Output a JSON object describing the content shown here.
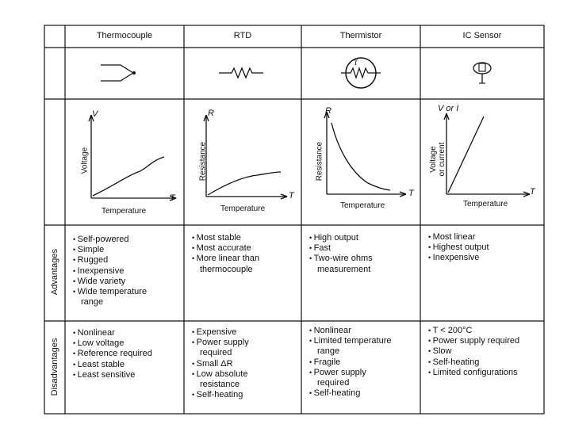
{
  "columns": [
    {
      "header": "Thermocouple",
      "symbol_icon": "thermocouple-junction-icon"
    },
    {
      "header": "RTD",
      "symbol_icon": "resistor-zigzag-icon"
    },
    {
      "header": "Thermistor",
      "symbol_icon": "thermistor-circle-icon"
    },
    {
      "header": "IC Sensor",
      "symbol_icon": "ic-sensor-icon"
    }
  ],
  "row_labels": {
    "advantages": "Advantages",
    "disadvantages": "Disadvantages"
  },
  "graphs": [
    {
      "y_symbol": "V",
      "y_label": "Voltage",
      "x_label": "Temperature",
      "x_symbol": "T",
      "curve": "rising with inflection"
    },
    {
      "y_symbol": "R",
      "y_label": "Resistance",
      "x_label": "Temperature",
      "x_symbol": "T",
      "curve": "rising, flattening"
    },
    {
      "y_symbol": "R",
      "y_label": "Resistance",
      "x_label": "Temperature",
      "x_symbol": "T",
      "curve": "decreasing exponential"
    },
    {
      "y_symbol": "V or I",
      "y_label_line1": "Voltage",
      "y_label_line2": "or current",
      "x_label": "Temperature",
      "x_symbol": "T",
      "curve": "linear"
    }
  ],
  "advantages": [
    [
      "Self-powered",
      "Simple",
      "Rugged",
      "Inexpensive",
      "Wide variety",
      "Wide temperature range"
    ],
    [
      "Most stable",
      "Most accurate",
      "More linear than thermocouple"
    ],
    [
      "High output",
      "Fast",
      "Two-wire ohms measurement"
    ],
    [
      "Most linear",
      "Highest output",
      "Inexpensive"
    ]
  ],
  "disadvantages": [
    [
      "Nonlinear",
      "Low voltage",
      "Reference required",
      "Least stable",
      "Least sensitive"
    ],
    [
      "Expensive",
      "Power supply required",
      "Small ΔR",
      "Low absolute resistance",
      "Self-heating"
    ],
    [
      "Nonlinear",
      "Limited temperature range",
      "Fragile",
      "Power supply required",
      "Self-heating"
    ],
    [
      "T < 200°C",
      "Power supply required",
      "Slow",
      "Self-heating",
      "Limited configurations"
    ]
  ]
}
